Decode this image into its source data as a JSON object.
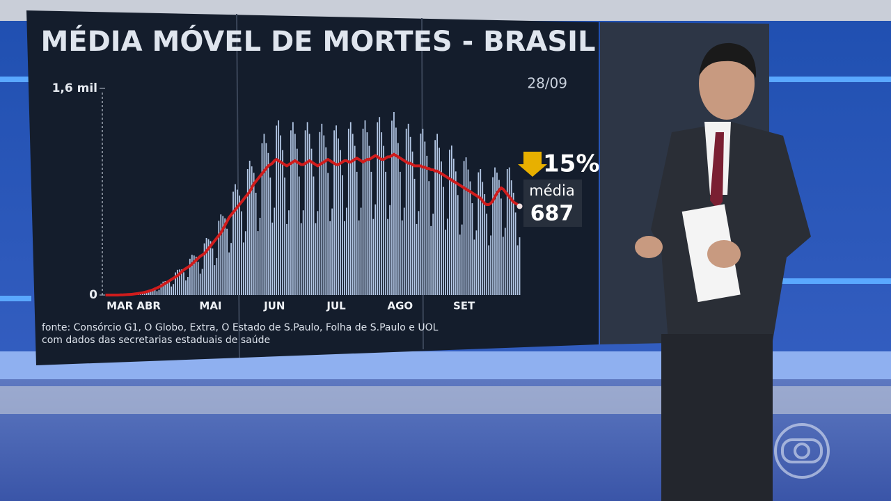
{
  "chart_data": {
    "type": "bar",
    "title": "MÉDIA MÓVEL DE MORTES - BRASIL",
    "date": "28/09",
    "variation_label": "15%",
    "average_label": "média",
    "source": [
      "fonte: Consórcio G1, O Globo, Extra, O Estado de S.Paulo, Folha de S.Paulo e UOL",
      "com dados das secretarias estaduais de saúde"
    ],
    "categories": [
      null,
      null,
      null,
      null,
      null,
      null,
      null,
      "MAR",
      null,
      null,
      null,
      null,
      null,
      null,
      null,
      null,
      null,
      null,
      null,
      null,
      null,
      "ABR",
      null,
      null,
      null,
      null,
      null,
      null,
      null,
      null,
      null,
      null,
      null,
      null,
      null,
      null,
      null,
      null,
      null,
      null,
      null,
      null,
      null,
      null,
      null,
      null,
      null,
      null,
      null,
      null,
      null,
      "MAI",
      null,
      null,
      null,
      null,
      null,
      null,
      null,
      null,
      null,
      null,
      null,
      null,
      null,
      null,
      null,
      null,
      null,
      null,
      null,
      null,
      null,
      null,
      null,
      null,
      null,
      null,
      null,
      null,
      null,
      null,
      "JUN",
      null,
      null,
      null,
      null,
      null,
      null,
      null,
      null,
      null,
      null,
      null,
      null,
      null,
      null,
      null,
      null,
      null,
      null,
      null,
      null,
      null,
      null,
      null,
      null,
      null,
      null,
      null,
      null,
      null,
      "JUL",
      null,
      null,
      null,
      null,
      null,
      null,
      null,
      null,
      null,
      null,
      null,
      null,
      null,
      null,
      null,
      null,
      null,
      null,
      null,
      null,
      null,
      null,
      null,
      null,
      null,
      null,
      null,
      null,
      null,
      null,
      "AGO",
      null,
      null,
      null,
      null,
      null,
      null,
      null,
      null,
      null,
      null,
      null,
      null,
      null,
      null,
      null,
      null,
      null,
      null,
      null,
      null,
      null,
      null,
      null,
      null,
      null,
      null,
      null,
      null,
      null,
      null,
      "SET",
      null,
      null,
      null,
      null,
      null,
      null,
      null,
      null,
      null,
      null,
      null,
      null,
      null,
      null,
      null,
      null,
      null,
      null,
      null,
      null,
      null,
      null,
      null,
      null,
      null,
      null,
      null
    ],
    "series": [
      {
        "type": "bar",
        "color": "#b4c8e6",
        "values": [
          0,
          0,
          0,
          0,
          0,
          0,
          0,
          1,
          1,
          2,
          3,
          2,
          3,
          8,
          10,
          12,
          13,
          14,
          10,
          14,
          31,
          39,
          42,
          44,
          43,
          30,
          40,
          88,
          104,
          108,
          110,
          99,
          66,
          85,
          175,
          195,
          198,
          198,
          176,
          113,
          140,
          281,
          312,
          306,
          297,
          257,
          165,
          202,
          400,
          442,
          432,
          418,
          360,
          231,
          286,
          575,
          624,
          612,
          594,
          513,
          330,
          403,
          800,
          858,
          816,
          770,
          648,
          407,
          494,
          975,
          1040,
          996,
          946,
          792,
          495,
          598,
          1175,
          1248,
          1176,
          1100,
          909,
          561,
          676,
          1312,
          1352,
          1236,
          1122,
          909,
          550,
          656,
          1275,
          1339,
          1248,
          1133,
          918,
          556,
          656,
          1275,
          1339,
          1248,
          1133,
          918,
          556,
          650,
          1262,
          1326,
          1236,
          1144,
          945,
          572,
          670,
          1275,
          1313,
          1212,
          1122,
          927,
          572,
          676,
          1288,
          1339,
          1248,
          1155,
          954,
          578,
          676,
          1288,
          1352,
          1260,
          1155,
          954,
          589,
          702,
          1338,
          1378,
          1260,
          1155,
          954,
          589,
          696,
          1350,
          1417,
          1296,
          1177,
          954,
          578,
          676,
          1288,
          1326,
          1224,
          1111,
          900,
          550,
          650,
          1250,
          1287,
          1188,
          1078,
          882,
          534,
          630,
          1200,
          1248,
          1140,
          1034,
          837,
          506,
          591,
          1125,
          1157,
          1056,
          957,
          774,
          468,
          546,
          1038,
          1066,
          972,
          880,
          711,
          429,
          500,
          950,
          975,
          876,
          781,
          630,
          385,
          461,
          912,
          988,
          948,
          891,
          747,
          451,
          520,
          975,
          988,
          888,
          792,
          639,
          385,
          447
        ]
      },
      {
        "type": "line",
        "color": "#d01c1c",
        "values": [
          0,
          0,
          0,
          0,
          0,
          0,
          0,
          1,
          1,
          2,
          3,
          4,
          5,
          6,
          8,
          10,
          12,
          15,
          18,
          21,
          25,
          30,
          35,
          40,
          48,
          55,
          62,
          70,
          80,
          90,
          100,
          110,
          120,
          130,
          140,
          150,
          165,
          180,
          195,
          205,
          215,
          225,
          240,
          255,
          270,
          285,
          300,
          310,
          320,
          340,
          360,
          380,
          400,
          420,
          440,
          460,
          480,
          510,
          540,
          570,
          600,
          620,
          640,
          660,
          680,
          700,
          720,
          740,
          760,
          780,
          800,
          830,
          860,
          880,
          900,
          920,
          940,
          960,
          980,
          1000,
          1010,
          1020,
          1040,
          1050,
          1040,
          1030,
          1020,
          1010,
          1000,
          1010,
          1020,
          1030,
          1040,
          1030,
          1020,
          1010,
          1010,
          1020,
          1030,
          1040,
          1030,
          1020,
          1010,
          1000,
          1010,
          1020,
          1030,
          1040,
          1050,
          1040,
          1030,
          1020,
          1010,
          1010,
          1020,
          1030,
          1040,
          1040,
          1030,
          1030,
          1040,
          1050,
          1060,
          1050,
          1040,
          1030,
          1040,
          1050,
          1050,
          1060,
          1070,
          1080,
          1070,
          1060,
          1050,
          1050,
          1060,
          1070,
          1070,
          1080,
          1090,
          1080,
          1070,
          1060,
          1050,
          1040,
          1030,
          1020,
          1020,
          1010,
          1000,
          1000,
          1000,
          1000,
          990,
          990,
          980,
          980,
          970,
          970,
          960,
          960,
          950,
          940,
          930,
          920,
          910,
          900,
          890,
          880,
          870,
          860,
          850,
          840,
          830,
          820,
          810,
          800,
          790,
          780,
          770,
          760,
          750,
          730,
          710,
          700,
          700,
          710,
          730,
          760,
          790,
          810,
          830,
          820,
          800,
          780,
          760,
          740,
          720,
          710,
          700,
          687
        ]
      }
    ],
    "ylim": [
      0,
      1600
    ],
    "yticks": [
      0,
      {
        "value": 1600,
        "label": "1,6 mil"
      }
    ]
  }
}
